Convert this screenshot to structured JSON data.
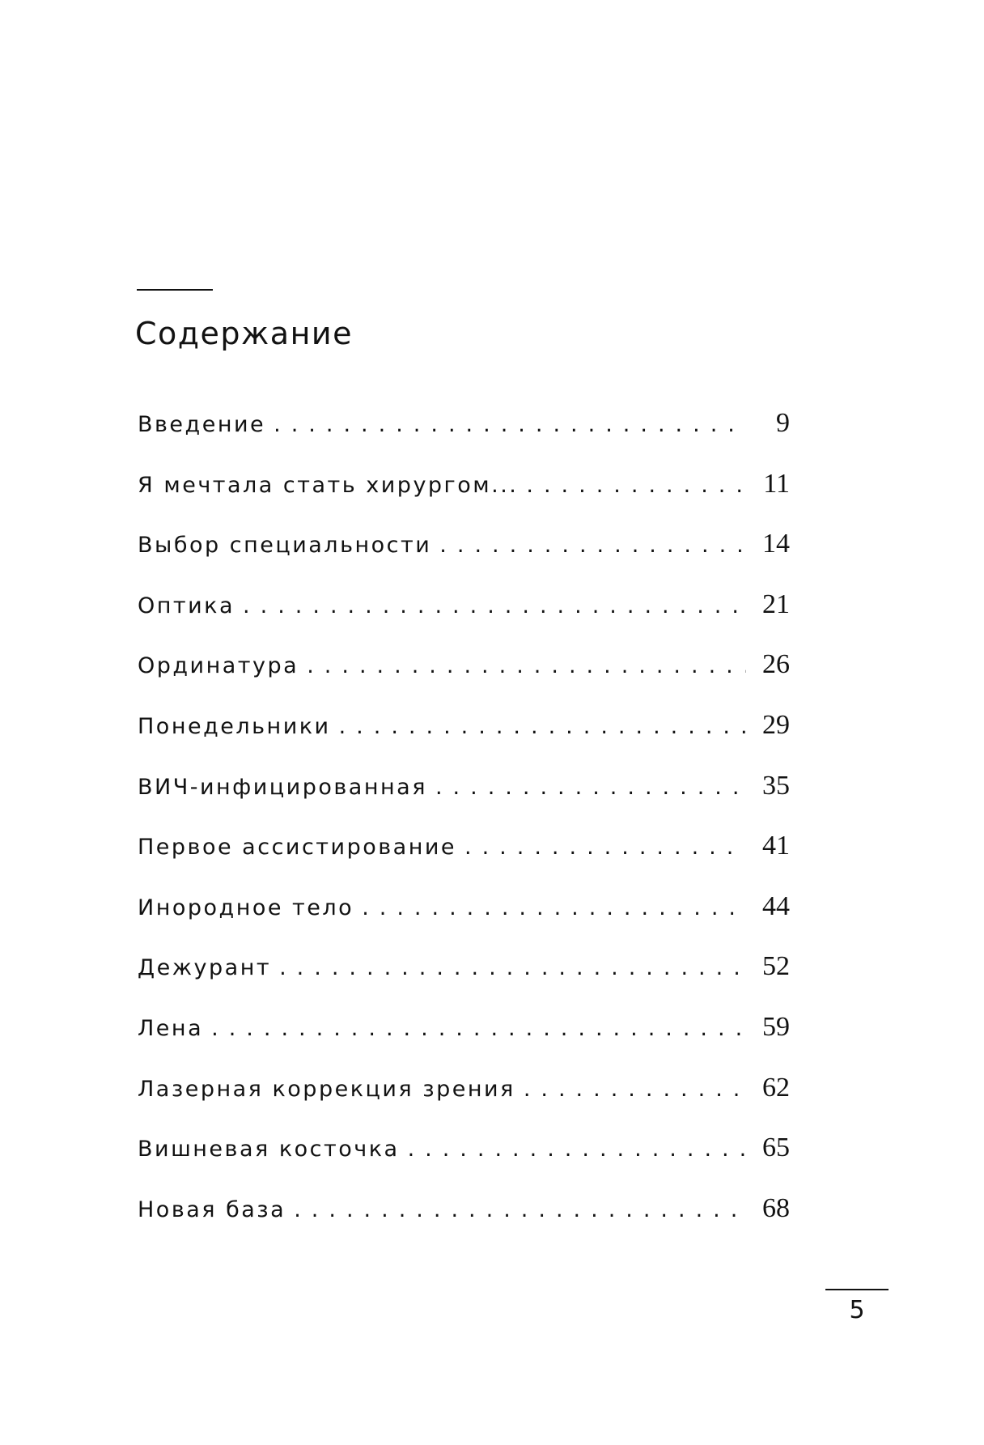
{
  "page": {
    "title": "Содержание",
    "footer_page_number": "5"
  },
  "colors": {
    "text": "#121212",
    "background": "#ffffff"
  },
  "toc": {
    "entries": [
      {
        "title": "Введение",
        "page": "9"
      },
      {
        "title": "Я мечтала стать хирургом...",
        "page": "11"
      },
      {
        "title": "Выбор специальности",
        "page": "14"
      },
      {
        "title": "Оптика",
        "page": "21"
      },
      {
        "title": "Ординатура",
        "page": "26"
      },
      {
        "title": "Понедельники",
        "page": "29"
      },
      {
        "title": "ВИЧ-инфицированная",
        "page": "35"
      },
      {
        "title": "Первое ассистирование",
        "page": "41"
      },
      {
        "title": "Инородное тело",
        "page": "44"
      },
      {
        "title": "Дежурант",
        "page": "52"
      },
      {
        "title": "Лена",
        "page": "59"
      },
      {
        "title": "Лазерная коррекция зрения",
        "page": "62"
      },
      {
        "title": "Вишневая косточка",
        "page": "65"
      },
      {
        "title": "Новая база",
        "page": "68"
      }
    ]
  }
}
